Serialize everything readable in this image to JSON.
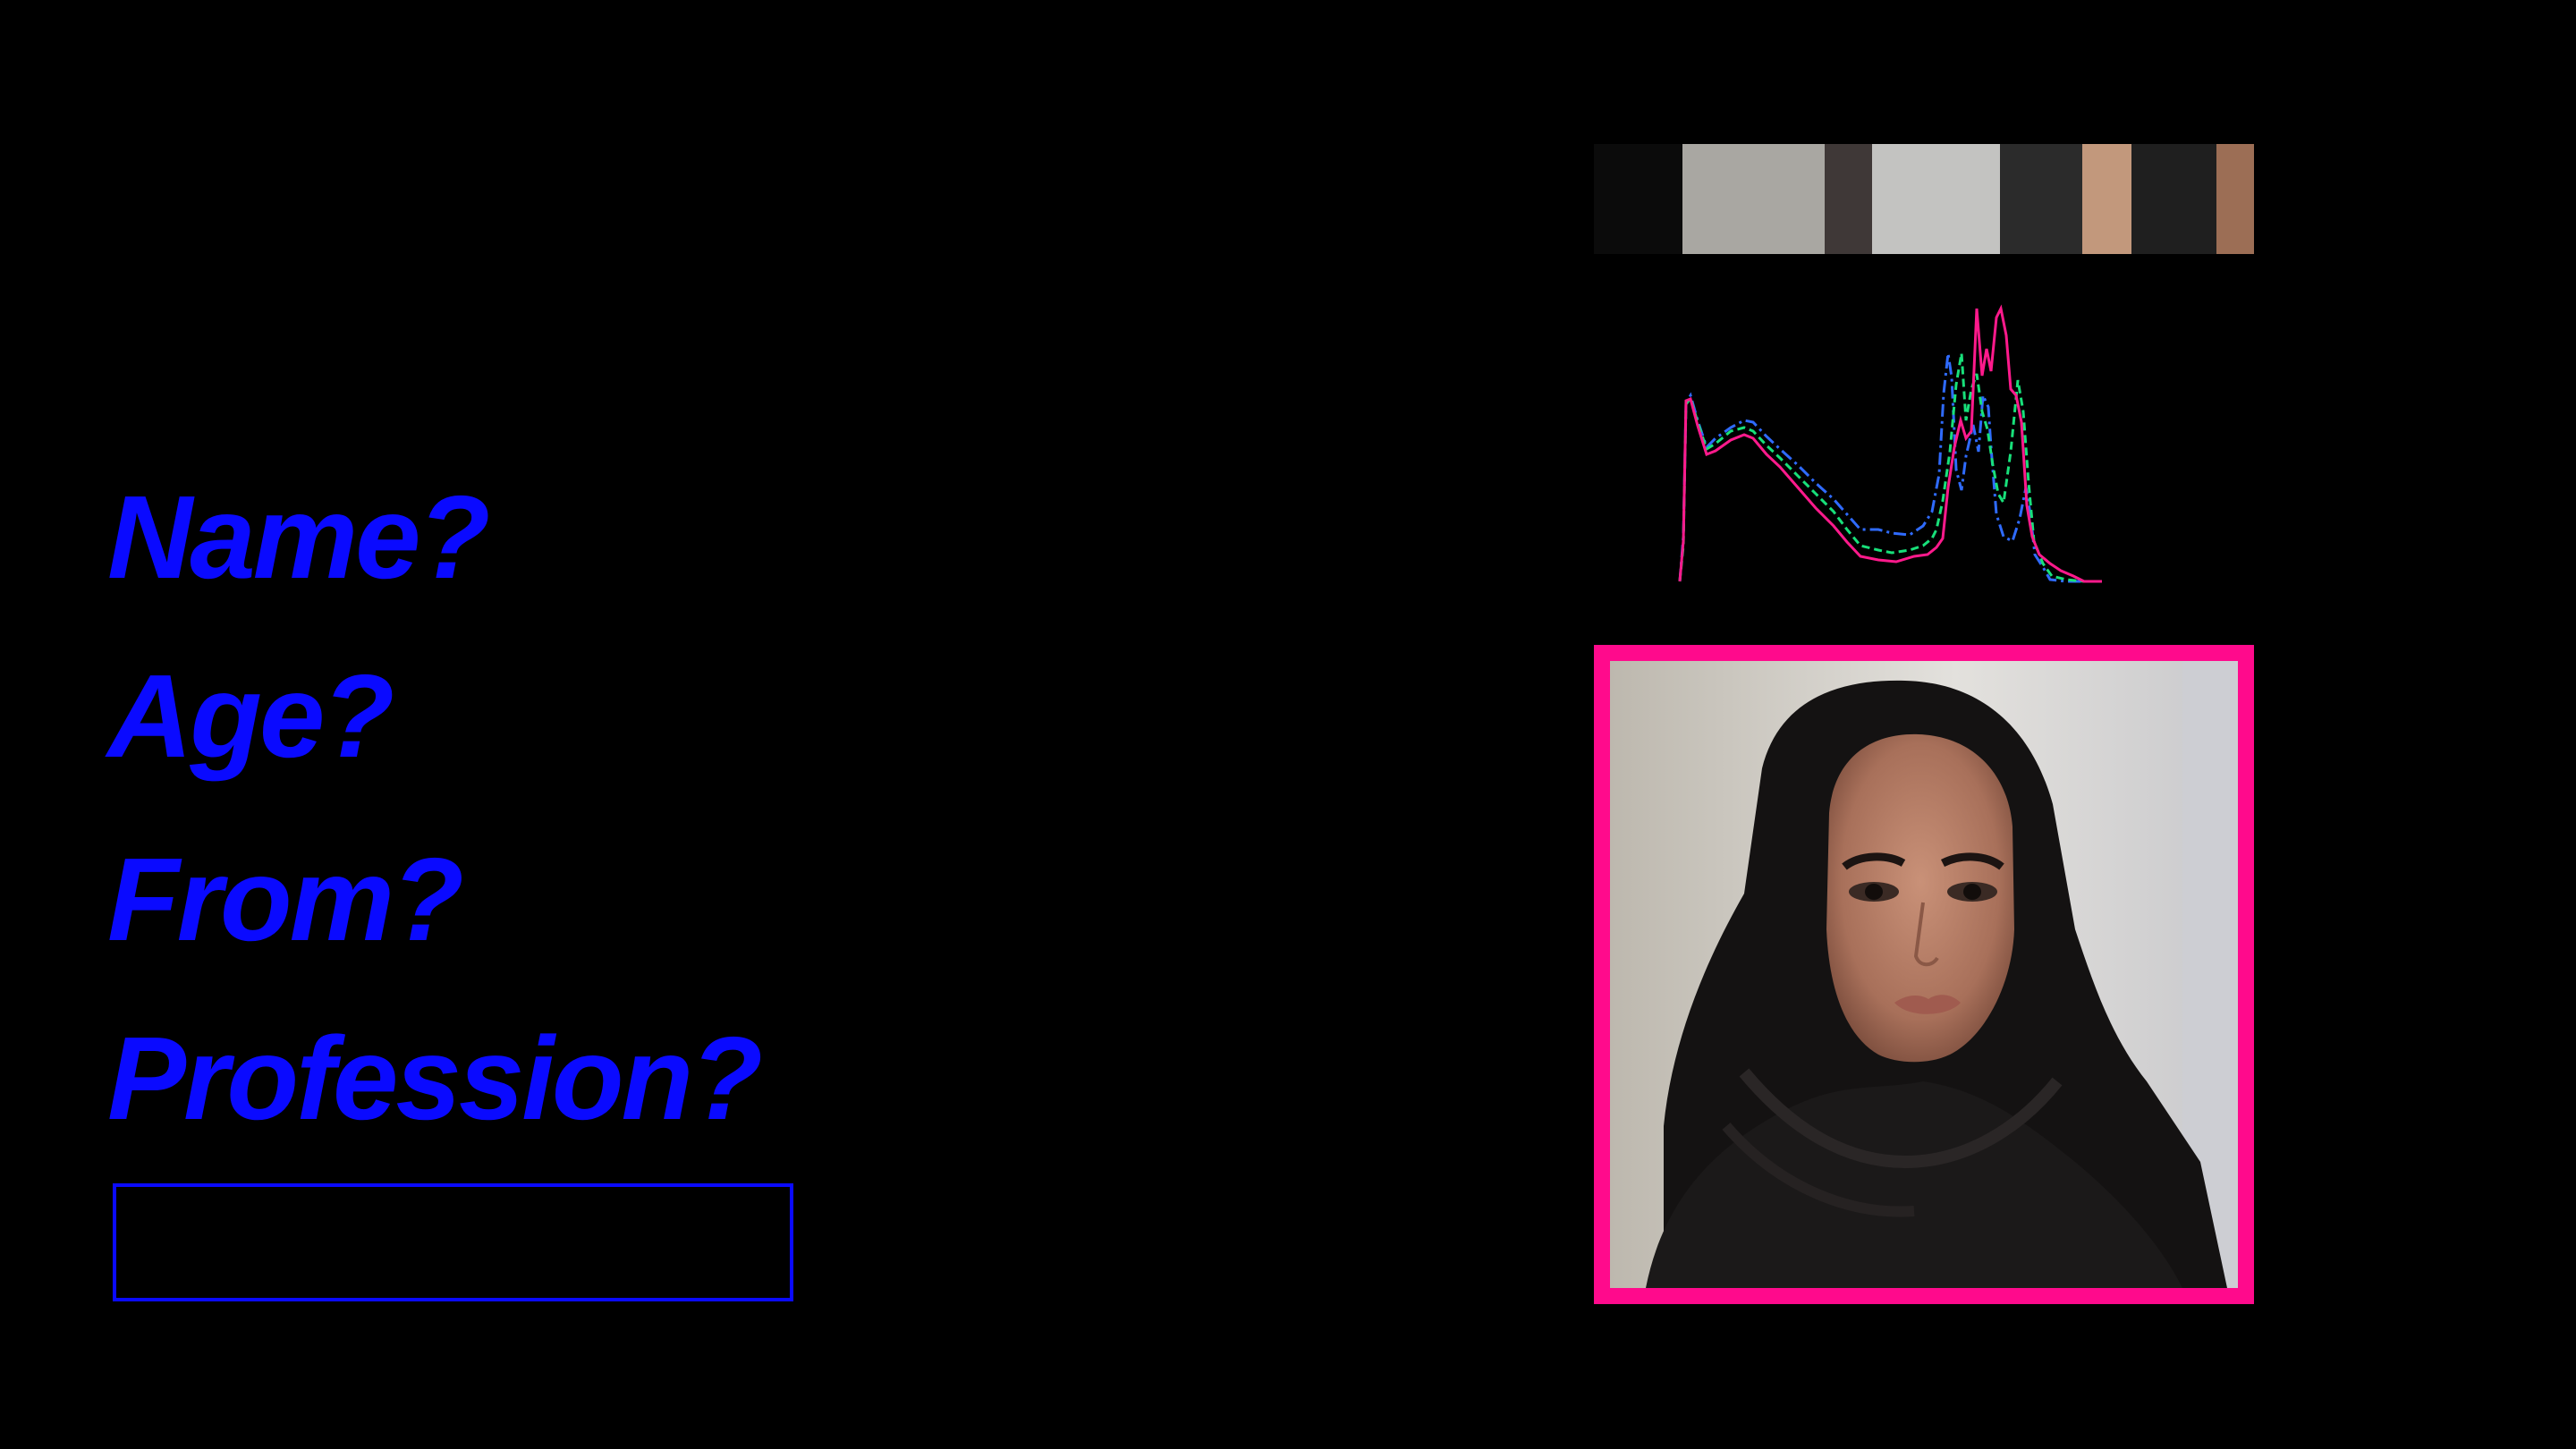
{
  "questions": {
    "name": "Name?",
    "age": "Age?",
    "from": "From?",
    "profession": "Profession?"
  },
  "answer_input": {
    "value": "",
    "placeholder": ""
  },
  "colors": {
    "text_accent": "#0a0aff",
    "frame_accent": "#ff0a8c",
    "background": "#000000"
  },
  "palette": [
    "#0b0b0b",
    "#a9a7a2",
    "#3f3837",
    "#c3c3c1",
    "#2b2b2b",
    "#c2987c",
    "#1f1f1f",
    "#9c6e55"
  ],
  "histogram": {
    "channels": [
      {
        "color": "#ff1a8c",
        "stroke": "solid"
      },
      {
        "color": "#18e07a",
        "stroke": "dashed"
      },
      {
        "color": "#2f6bff",
        "stroke": "dash-dot"
      }
    ]
  },
  "photo": {
    "icon": "portrait-photo"
  }
}
